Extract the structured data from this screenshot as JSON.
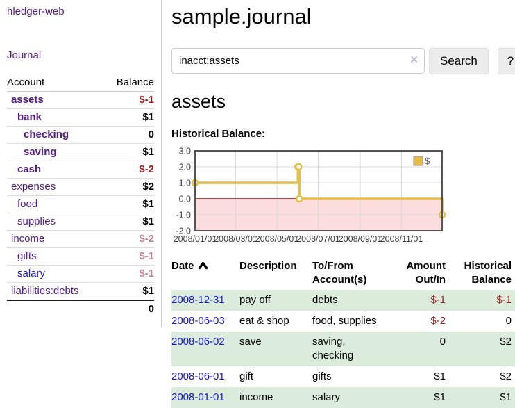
{
  "app": {
    "brand": "hledger-web",
    "journal_link": "Journal"
  },
  "sidebar": {
    "headers": {
      "account": "Account",
      "balance": "Balance"
    },
    "rows": [
      {
        "account": "assets",
        "balance": "$-1",
        "indent": 0,
        "in_view": true,
        "balance_class": "neg-strong",
        "link_style": "purple"
      },
      {
        "account": "bank",
        "balance": "$1",
        "indent": 1,
        "in_view": true,
        "balance_class": "normal",
        "link_style": "purple"
      },
      {
        "account": "checking",
        "balance": "0",
        "indent": 2,
        "in_view": true,
        "balance_class": "normal",
        "link_style": "purple"
      },
      {
        "account": "saving",
        "balance": "$1",
        "indent": 2,
        "in_view": true,
        "balance_class": "normal",
        "link_style": "purple"
      },
      {
        "account": "cash",
        "balance": "$-2",
        "indent": 1,
        "in_view": true,
        "balance_class": "neg-strong",
        "link_style": "purple"
      },
      {
        "account": "expenses",
        "balance": "$2",
        "indent": 0,
        "in_view": false,
        "balance_class": "normal",
        "link_style": "purple"
      },
      {
        "account": "food",
        "balance": "$1",
        "indent": 1,
        "in_view": false,
        "balance_class": "normal",
        "link_style": "purple"
      },
      {
        "account": "supplies",
        "balance": "$1",
        "indent": 1,
        "in_view": false,
        "balance_class": "normal",
        "link_style": "purple"
      },
      {
        "account": "income",
        "balance": "$-2",
        "indent": 0,
        "in_view": false,
        "balance_class": "neg-soft",
        "link_style": "purple"
      },
      {
        "account": "gifts",
        "balance": "$-1",
        "indent": 1,
        "in_view": false,
        "balance_class": "neg-soft",
        "link_style": "purple"
      },
      {
        "account": "salary",
        "balance": "$-1",
        "indent": 1,
        "in_view": false,
        "balance_class": "neg-soft",
        "link_style": "blue"
      },
      {
        "account": "liabilities:debts",
        "balance": "$1",
        "indent": 0,
        "in_view": false,
        "balance_class": "normal",
        "link_style": "purple"
      }
    ],
    "total": "0"
  },
  "main": {
    "title": "sample.journal",
    "search": {
      "value": "inacct:assets",
      "clear_icon": "✕",
      "search_button": "Search",
      "help_button": "?"
    },
    "account_heading": "assets",
    "section_label": "Historical Balance:"
  },
  "chart_data": {
    "type": "line",
    "title": "Historical Balance:",
    "step": true,
    "x_range": [
      "2008-01-01",
      "2008-12-31"
    ],
    "ylim": [
      -2,
      3
    ],
    "y_ticks": [
      3.0,
      2.0,
      1.0,
      0.0,
      -1.0,
      -2.0
    ],
    "x_ticks": [
      {
        "date": "2008-01-01",
        "label": "2008/01/01"
      },
      {
        "date": "2008-03-01",
        "label": "2008/03/01"
      },
      {
        "date": "2008-05-01",
        "label": "2008/05/01"
      },
      {
        "date": "2008-07-01",
        "label": "2008/07/01"
      },
      {
        "date": "2008-09-01",
        "label": "2008/09/01"
      },
      {
        "date": "2008-11-01",
        "label": "2008/11/01"
      }
    ],
    "series": [
      {
        "name": "$",
        "color": "#e8bc48",
        "points": [
          [
            "2008-01-01",
            1.0
          ],
          [
            "2008-06-01",
            2.0
          ],
          [
            "2008-06-02",
            2.0
          ],
          [
            "2008-06-03",
            0.0
          ],
          [
            "2008-12-31",
            -1.0
          ]
        ]
      }
    ],
    "legend": {
      "label": "$",
      "position": "top-right"
    },
    "grid": true,
    "negative_region_color": "#fbdddd",
    "zero_line_color": "#8f0e0e",
    "border_color": "#545454"
  },
  "register": {
    "headers": {
      "date": "Date",
      "description": "Description",
      "accounts": "To/From Account(s)",
      "amount": "Amount Out/In",
      "balance": "Historical Balance"
    },
    "rows": [
      {
        "date": "2008-12-31",
        "description": "pay off",
        "accounts": "debts",
        "amount": "$-1",
        "balance": "$-1",
        "amount_negative": true,
        "balance_negative": true
      },
      {
        "date": "2008-06-03",
        "description": "eat & shop",
        "accounts": "food, supplies",
        "amount": "$-2",
        "balance": "0",
        "amount_negative": true,
        "balance_negative": false
      },
      {
        "date": "2008-06-02",
        "description": "save",
        "accounts": "saving, checking",
        "amount": "0",
        "balance": "$2",
        "amount_negative": false,
        "balance_negative": false
      },
      {
        "date": "2008-06-01",
        "description": "gift",
        "accounts": "gifts",
        "amount": "$1",
        "balance": "$2",
        "amount_negative": false,
        "balance_negative": false
      },
      {
        "date": "2008-01-01",
        "description": "income",
        "accounts": "salary",
        "amount": "$1",
        "balance": "$1",
        "amount_negative": false,
        "balance_negative": false
      }
    ]
  },
  "colors": {
    "link_purple": "#551a8b",
    "link_blue": "#1414e0",
    "negative_strong": "#9e1818",
    "negative_soft": "#c2808d",
    "row_green": "#dcecdc",
    "series_yellow": "#e8bc48"
  }
}
